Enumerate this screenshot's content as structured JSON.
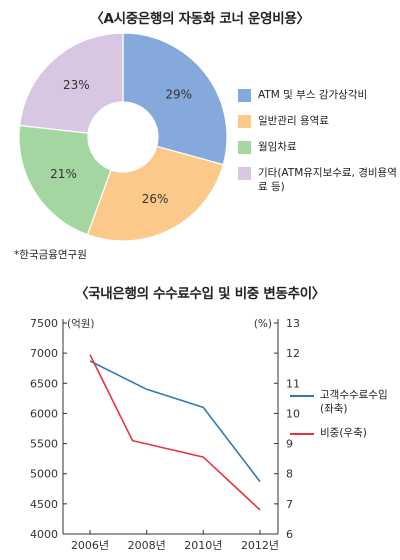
{
  "chart_data": [
    {
      "type": "pie",
      "title": "〈A시중은행의 자동화 코너 운영비용〉",
      "source": "*한국금융연구원",
      "slices": [
        {
          "label": "ATM 및 부스 감가상각비",
          "value": 29,
          "value_label": "29%",
          "color": "#86a9db"
        },
        {
          "label": "일반관리 용역료",
          "value": 26,
          "value_label": "26%",
          "color": "#fbc98a"
        },
        {
          "label": "월임차료",
          "value": 21,
          "value_label": "21%",
          "color": "#a3d6a0"
        },
        {
          "label": "기타(ATM유지보수료, 경비용역료 등)",
          "value": 23,
          "value_label": "23%",
          "color": "#d9c6e2"
        }
      ]
    },
    {
      "type": "line",
      "title": "〈국내은행의 수수료수입 및 비중 변동추이〉",
      "categories": [
        "2006년",
        "2008년",
        "2010년",
        "2012년"
      ],
      "left_axis": {
        "unit": "(억원)",
        "ylim": [
          4000,
          7500
        ],
        "ticks": [
          "4000",
          "4500",
          "5000",
          "5500",
          "6000",
          "6500",
          "7000",
          "7500"
        ]
      },
      "right_axis": {
        "unit": "(%)",
        "ylim": [
          6,
          13
        ],
        "ticks": [
          "6",
          "7",
          "8",
          "9",
          "10",
          "11",
          "12",
          "13"
        ]
      },
      "series": [
        {
          "name": "고객수수료수입 (좌축)",
          "name_lines": [
            "고객수수료수입",
            "(좌축)"
          ],
          "axis": "left",
          "color": "#2a7ab8",
          "values": [
            6870,
            6400,
            6100,
            4870
          ]
        },
        {
          "name": "비중(우축)",
          "name_lines": [
            "비중(우축)"
          ],
          "axis": "right",
          "color": "#e8333a",
          "x": [
            0,
            0.75,
            2,
            3
          ],
          "values": [
            11.95,
            9.1,
            8.55,
            6.8
          ]
        }
      ]
    }
  ]
}
